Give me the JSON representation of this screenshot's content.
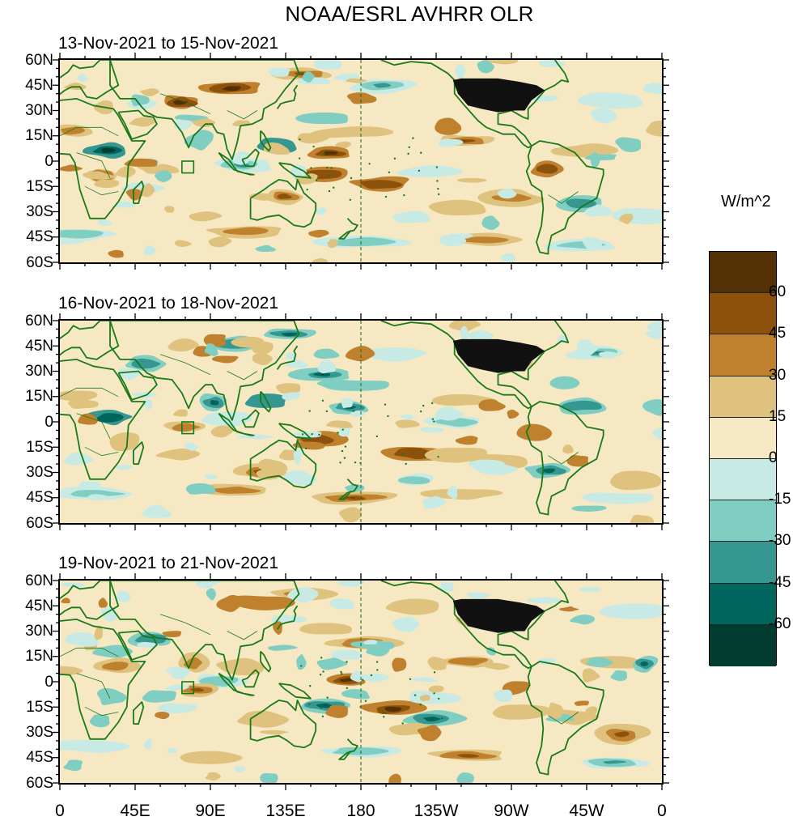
{
  "title": "NOAA/ESRL AVHRR OLR",
  "panels": [
    {
      "date_range": "13-Nov-2021 to 15-Nov-2021"
    },
    {
      "date_range": "16-Nov-2021 to 18-Nov-2021"
    },
    {
      "date_range": "19-Nov-2021 to 21-Nov-2021"
    }
  ],
  "lat_labels": [
    "60N",
    "45N",
    "30N",
    "15N",
    "0",
    "15S",
    "30S",
    "45S",
    "60S"
  ],
  "lon_labels": [
    "0",
    "45E",
    "90E",
    "135E",
    "180",
    "135W",
    "90W",
    "45W",
    "0"
  ],
  "colorbar": {
    "units": "W/m^2",
    "levels": [
      "60",
      "45",
      "30",
      "15",
      "0",
      "-15",
      "-30",
      "-45",
      "-60"
    ],
    "colors": [
      "#543005",
      "#8c510a",
      "#bf812d",
      "#dfc27d",
      "#f6e8c3",
      "#c7eae5",
      "#80cdc1",
      "#35978f",
      "#01665e",
      "#003c30"
    ]
  },
  "map_colors": {
    "land": "#1a7a1a",
    "dateline": "#1a6a1a",
    "usa": "#111111"
  }
}
